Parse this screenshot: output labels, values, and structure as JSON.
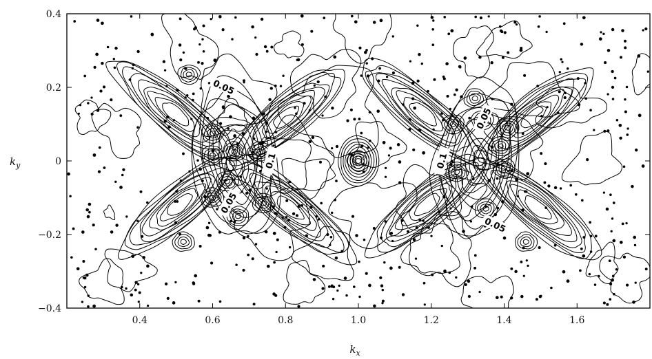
{
  "chart_data": {
    "type": "contour",
    "title": "",
    "xlabel": {
      "base": "k",
      "sub": "x"
    },
    "ylabel": {
      "base": "k",
      "sub": "y"
    },
    "xlim": [
      0.2,
      1.8
    ],
    "ylim": [
      -0.4,
      0.4
    ],
    "xticks": [
      0.4,
      0.6,
      0.8,
      1.0,
      1.2,
      1.4,
      1.6
    ],
    "xtick_labels": [
      "0.4",
      "0.6",
      "0.8",
      "1.0",
      "1.2",
      "1.4",
      "1.6"
    ],
    "yticks": [
      -0.4,
      -0.2,
      0,
      0.2,
      0.4
    ],
    "ytick_labels": [
      "−0.4",
      "−0.2",
      "0",
      "0.2",
      "0.4"
    ],
    "grid": false,
    "line_color": "#000000",
    "contour_labels": [
      {
        "text": "0.05",
        "x": 0.63,
        "y": 0.2,
        "angle": 25
      },
      {
        "text": "0.1",
        "x": 0.76,
        "y": 0.0,
        "angle": -75
      },
      {
        "text": "0.05",
        "x": 0.645,
        "y": -0.115,
        "angle": -60
      },
      {
        "text": "0.05",
        "x": 1.345,
        "y": 0.115,
        "angle": -65
      },
      {
        "text": "0.1",
        "x": 1.23,
        "y": 0.0,
        "angle": -75
      },
      {
        "text": "0.05",
        "x": 1.375,
        "y": -0.175,
        "angle": 25
      }
    ],
    "centers": [
      {
        "x": 0.535,
        "y": 0.235
      },
      {
        "x": 0.6,
        "y": 0.075
      },
      {
        "x": 0.66,
        "y": 0.025
      },
      {
        "x": 0.73,
        "y": 0.025
      },
      {
        "x": 0.6,
        "y": 0.015
      },
      {
        "x": 0.64,
        "y": -0.055
      },
      {
        "x": 0.6,
        "y": -0.1
      },
      {
        "x": 0.67,
        "y": -0.15
      },
      {
        "x": 0.74,
        "y": -0.115
      },
      {
        "x": 0.52,
        "y": -0.22
      },
      {
        "x": 1.0,
        "y": 0.0
      },
      {
        "x": 1.27,
        "y": -0.03
      },
      {
        "x": 1.34,
        "y": 0.11
      },
      {
        "x": 1.41,
        "y": 0.09
      },
      {
        "x": 1.39,
        "y": 0.04
      },
      {
        "x": 1.4,
        "y": -0.02
      },
      {
        "x": 1.35,
        "y": -0.13
      },
      {
        "x": 1.46,
        "y": -0.22
      },
      {
        "x": 1.32,
        "y": 0.17
      },
      {
        "x": 1.26,
        "y": 0.1
      }
    ]
  }
}
